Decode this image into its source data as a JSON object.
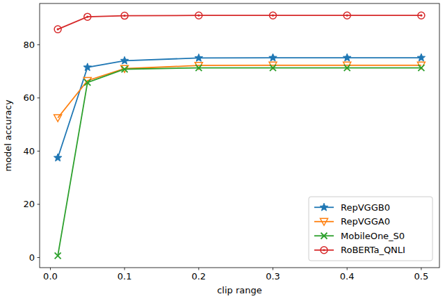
{
  "chart_data": {
    "type": "line",
    "x_label": "clip range",
    "y_label": "model accuracy",
    "x": [
      0.01,
      0.05,
      0.1,
      0.2,
      0.3,
      0.4,
      0.5
    ],
    "series": [
      {
        "name": "RepVGGB0",
        "color": "#1f77b4",
        "marker": "star",
        "values": [
          37.5,
          71.5,
          74.0,
          75.0,
          75.1,
          75.1,
          75.1
        ]
      },
      {
        "name": "RepVGGA0",
        "color": "#ff7f0e",
        "marker": "triangle_down",
        "values": [
          52.5,
          66.5,
          71.0,
          72.2,
          72.3,
          72.3,
          72.3
        ]
      },
      {
        "name": "MobileOne_S0",
        "color": "#2ca02c",
        "marker": "x",
        "values": [
          0.7,
          65.8,
          70.8,
          71.3,
          71.3,
          71.3,
          71.3
        ]
      },
      {
        "name": "RoBERTa_QNLI",
        "color": "#d62728",
        "marker": "circle",
        "values": [
          85.8,
          90.5,
          90.9,
          91.0,
          91.0,
          91.0,
          91.0
        ]
      }
    ],
    "xlim": [
      -0.0145,
      0.5245
    ],
    "ylim": [
      -3.8,
      95.5
    ],
    "xticks": [
      {
        "value": 0,
        "label": "0.0"
      },
      0.1,
      0.2,
      0.3,
      0.4,
      0.5
    ],
    "yticks": [
      0,
      20,
      40,
      60,
      80
    ],
    "grid": false,
    "legend": "lower right"
  }
}
